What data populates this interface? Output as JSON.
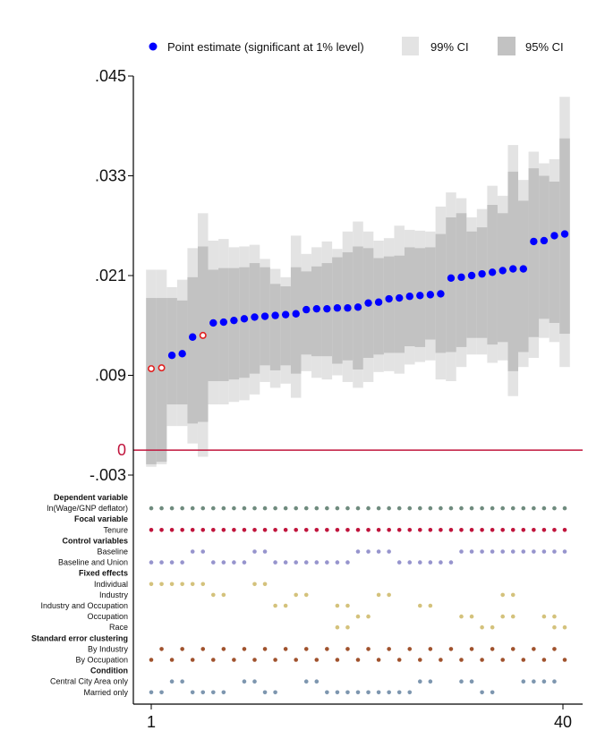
{
  "chart_data": {
    "type": "scatter",
    "subtype": "specification-curve",
    "legend": {
      "placement": "top",
      "entries": [
        {
          "label": "Point estimate (significant at 1% level)",
          "color": "#0000ff"
        },
        {
          "label": "99% CI",
          "color": "#e3e3e3"
        },
        {
          "label": "95% CI",
          "color": "#c2c2c2"
        }
      ]
    },
    "y_ticks": [
      {
        "value": 0.045,
        "label": ".045"
      },
      {
        "value": 0.033,
        "label": ".033"
      },
      {
        "value": 0.021,
        "label": ".021"
      },
      {
        "value": 0.009,
        "label": ".009"
      },
      {
        "value": -0.003,
        "label": "-.003"
      }
    ],
    "zero_line": {
      "value": 0,
      "label": "0",
      "color": "#c0143c"
    },
    "ylim": [
      -0.0045,
      0.0455
    ],
    "x_ticks": [
      {
        "value": 1,
        "label": "1"
      },
      {
        "value": 40,
        "label": "40"
      }
    ],
    "xlim": [
      1,
      40
    ],
    "estimates": [
      {
        "x": 1,
        "est": 0.0098,
        "ci95": [
          -0.0017,
          0.0183
        ],
        "ci99": [
          -0.002,
          0.0217
        ],
        "sig": false
      },
      {
        "x": 2,
        "est": 0.0099,
        "ci95": [
          -0.0014,
          0.0183
        ],
        "ci99": [
          -0.0017,
          0.0217
        ],
        "sig": false
      },
      {
        "x": 3,
        "est": 0.0114,
        "ci95": [
          0.0055,
          0.0183
        ],
        "ci99": [
          0.0029,
          0.0196
        ],
        "sig": true
      },
      {
        "x": 4,
        "est": 0.0116,
        "ci95": [
          0.0055,
          0.018
        ],
        "ci99": [
          0.0029,
          0.0205
        ],
        "sig": true
      },
      {
        "x": 5,
        "est": 0.0136,
        "ci95": [
          0.0032,
          0.0208
        ],
        "ci99": [
          0.0008,
          0.0243
        ],
        "sig": true
      },
      {
        "x": 6,
        "est": 0.0138,
        "ci95": [
          0.0034,
          0.0245
        ],
        "ci99": [
          -0.0008,
          0.0285
        ],
        "sig": false
      },
      {
        "x": 7,
        "est": 0.0153,
        "ci95": [
          0.0083,
          0.0217
        ],
        "ci99": [
          0.0055,
          0.0252
        ],
        "sig": true
      },
      {
        "x": 8,
        "est": 0.0154,
        "ci95": [
          0.0083,
          0.0219
        ],
        "ci99": [
          0.0055,
          0.0254
        ],
        "sig": true
      },
      {
        "x": 9,
        "est": 0.0156,
        "ci95": [
          0.0085,
          0.0219
        ],
        "ci99": [
          0.0058,
          0.0244
        ],
        "sig": true
      },
      {
        "x": 10,
        "est": 0.0158,
        "ci95": [
          0.0087,
          0.022
        ],
        "ci99": [
          0.006,
          0.0245
        ],
        "sig": true
      },
      {
        "x": 11,
        "est": 0.016,
        "ci95": [
          0.0092,
          0.0225
        ],
        "ci99": [
          0.0067,
          0.0247
        ],
        "sig": true
      },
      {
        "x": 12,
        "est": 0.0161,
        "ci95": [
          0.0102,
          0.022
        ],
        "ci99": [
          0.0082,
          0.023
        ],
        "sig": true
      },
      {
        "x": 13,
        "est": 0.0162,
        "ci95": [
          0.0096,
          0.02
        ],
        "ci99": [
          0.0075,
          0.0218
        ],
        "sig": true
      },
      {
        "x": 14,
        "est": 0.0163,
        "ci95": [
          0.0102,
          0.0197
        ],
        "ci99": [
          0.008,
          0.0208
        ],
        "sig": true
      },
      {
        "x": 15,
        "est": 0.0164,
        "ci95": [
          0.0092,
          0.022
        ],
        "ci99": [
          0.0063,
          0.0258
        ],
        "sig": true
      },
      {
        "x": 16,
        "est": 0.0169,
        "ci95": [
          0.0115,
          0.0215
        ],
        "ci99": [
          0.0095,
          0.0236
        ],
        "sig": true
      },
      {
        "x": 17,
        "est": 0.017,
        "ci95": [
          0.0113,
          0.0221
        ],
        "ci99": [
          0.0087,
          0.0244
        ],
        "sig": true
      },
      {
        "x": 18,
        "est": 0.017,
        "ci95": [
          0.0113,
          0.0225
        ],
        "ci99": [
          0.0085,
          0.0251
        ],
        "sig": true
      },
      {
        "x": 19,
        "est": 0.0171,
        "ci95": [
          0.0104,
          0.0232
        ],
        "ci99": [
          0.009,
          0.0242
        ],
        "sig": true
      },
      {
        "x": 20,
        "est": 0.0171,
        "ci95": [
          0.0108,
          0.0238
        ],
        "ci99": [
          0.0082,
          0.0263
        ],
        "sig": true
      },
      {
        "x": 21,
        "est": 0.0172,
        "ci95": [
          0.0097,
          0.0245
        ],
        "ci99": [
          0.0075,
          0.0275
        ],
        "sig": true
      },
      {
        "x": 22,
        "est": 0.0177,
        "ci95": [
          0.0111,
          0.0243
        ],
        "ci99": [
          0.0082,
          0.0263
        ],
        "sig": true
      },
      {
        "x": 23,
        "est": 0.0178,
        "ci95": [
          0.0115,
          0.0231
        ],
        "ci99": [
          0.0094,
          0.0252
        ],
        "sig": true
      },
      {
        "x": 24,
        "est": 0.0182,
        "ci95": [
          0.0117,
          0.0233
        ],
        "ci99": [
          0.0095,
          0.0255
        ],
        "sig": true
      },
      {
        "x": 25,
        "est": 0.0183,
        "ci95": [
          0.0117,
          0.0234
        ],
        "ci99": [
          0.0092,
          0.027
        ],
        "sig": true
      },
      {
        "x": 26,
        "est": 0.0185,
        "ci95": [
          0.0125,
          0.0244
        ],
        "ci99": [
          0.0103,
          0.0265
        ],
        "sig": true
      },
      {
        "x": 27,
        "est": 0.0186,
        "ci95": [
          0.0124,
          0.0243
        ],
        "ci99": [
          0.0106,
          0.0264
        ],
        "sig": true
      },
      {
        "x": 28,
        "est": 0.0187,
        "ci95": [
          0.0133,
          0.0244
        ],
        "ci99": [
          0.0108,
          0.0263
        ],
        "sig": true
      },
      {
        "x": 29,
        "est": 0.0188,
        "ci95": [
          0.0117,
          0.026
        ],
        "ci99": [
          0.0085,
          0.0293
        ],
        "sig": true
      },
      {
        "x": 30,
        "est": 0.0207,
        "ci95": [
          0.0118,
          0.028
        ],
        "ci99": [
          0.0083,
          0.031
        ],
        "sig": true
      },
      {
        "x": 31,
        "est": 0.0208,
        "ci95": [
          0.0124,
          0.0285
        ],
        "ci99": [
          0.01,
          0.0303
        ],
        "sig": true
      },
      {
        "x": 32,
        "est": 0.021,
        "ci95": [
          0.0135,
          0.0263
        ],
        "ci99": [
          0.0115,
          0.028
        ],
        "sig": true
      },
      {
        "x": 33,
        "est": 0.0212,
        "ci95": [
          0.0135,
          0.0268
        ],
        "ci99": [
          0.0115,
          0.029
        ],
        "sig": true
      },
      {
        "x": 34,
        "est": 0.0214,
        "ci95": [
          0.0127,
          0.0295
        ],
        "ci99": [
          0.0105,
          0.0318
        ],
        "sig": true
      },
      {
        "x": 35,
        "est": 0.0216,
        "ci95": [
          0.013,
          0.0285
        ],
        "ci99": [
          0.0108,
          0.0306
        ],
        "sig": true
      },
      {
        "x": 36,
        "est": 0.0218,
        "ci95": [
          0.0095,
          0.0335
        ],
        "ci99": [
          0.0065,
          0.0367
        ],
        "sig": true
      },
      {
        "x": 37,
        "est": 0.0218,
        "ci95": [
          0.0118,
          0.03
        ],
        "ci99": [
          0.01,
          0.0325
        ],
        "sig": true
      },
      {
        "x": 38,
        "est": 0.0251,
        "ci95": [
          0.0136,
          0.0339
        ],
        "ci99": [
          0.0111,
          0.0359
        ],
        "sig": true
      },
      {
        "x": 39,
        "est": 0.0252,
        "ci95": [
          0.0158,
          0.033
        ],
        "ci99": [
          0.0135,
          0.0345
        ],
        "sig": true
      },
      {
        "x": 40,
        "est": 0.0258,
        "ci95": [
          0.0153,
          0.0323
        ],
        "ci99": [
          0.013,
          0.035
        ],
        "sig": true
      },
      {
        "x": 41,
        "est": 0.026,
        "ci95": [
          0.014,
          0.0375
        ],
        "ci99": [
          0.01,
          0.0425
        ],
        "sig": true
      }
    ],
    "spec_rows": [
      {
        "label": "Dependent variable",
        "header": true
      },
      {
        "label": "ln(Wage/GNP deflator)",
        "color": "#6f8b7e",
        "on": "11111111111111111111111111111111111111111"
      },
      {
        "label": "Focal variable",
        "header": true
      },
      {
        "label": "Tenure",
        "color": "#c0143c",
        "on": "11111111111111111111111111111111111111111"
      },
      {
        "label": "Control variables",
        "header": true
      },
      {
        "label": "Baseline",
        "color": "#9694cd",
        "on": "00001100001100000000111100000011111111111"
      },
      {
        "label": "Baseline and Union",
        "color": "#9694cd",
        "on": "11110011110011111111000011111100000000000"
      },
      {
        "label": "Fixed effects",
        "header": true
      },
      {
        "label": "Individual",
        "color": "#d4c27c",
        "on": "11111100001100000000000000000000000000000"
      },
      {
        "label": "Industry",
        "color": "#d4c27c",
        "on": "00000011000000110000001100000000001100000"
      },
      {
        "label": "Industry and Occupation",
        "color": "#d4c27c",
        "on": "00000000000011000011000000110000000000000"
      },
      {
        "label": "Occupation",
        "color": "#d4c27c",
        "on": "00000000000000000000110000000011001100110"
      },
      {
        "label": "Race",
        "color": "#d4c27c",
        "on": "00000000000000000011000000000000110000011"
      },
      {
        "label": "Standard error clustering",
        "header": true
      },
      {
        "label": "By Industry",
        "color": "#a0522d",
        "on": "01010101010101010101010101010101010101010"
      },
      {
        "label": "By Occupation",
        "color": "#a0522d",
        "on": "10101010101010101010101010101010101010101"
      },
      {
        "label": "Condition",
        "header": true
      },
      {
        "label": "Central City Area only",
        "color": "#7d96af",
        "on": "00110000011000011000000000110011000011110"
      },
      {
        "label": "Married only",
        "color": "#7d96af",
        "on": "11001111000110000111111111000000110000000"
      }
    ]
  }
}
